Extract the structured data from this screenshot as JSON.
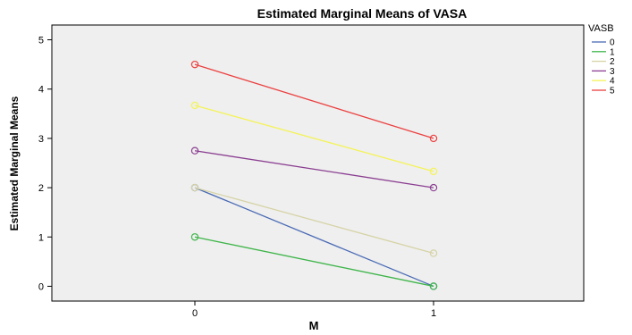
{
  "chart_data": {
    "type": "line",
    "title": "Estimated Marginal Means of VASA",
    "xlabel": "M",
    "ylabel": "Estimated Marginal Means",
    "categories": [
      "0",
      "1"
    ],
    "ylim": [
      -0.3,
      5.3
    ],
    "yticks": [
      0,
      1,
      2,
      3,
      4,
      5
    ],
    "grid": false,
    "legend_title": "VASB",
    "legend_position": "right",
    "series": [
      {
        "name": "0",
        "color": "#4b6bb5",
        "values": [
          2.0,
          0.0
        ]
      },
      {
        "name": "1",
        "color": "#3fb54a",
        "values": [
          1.0,
          0.0
        ]
      },
      {
        "name": "2",
        "color": "#d6d3a6",
        "values": [
          2.0,
          0.67
        ]
      },
      {
        "name": "3",
        "color": "#8b3f91",
        "values": [
          2.75,
          2.0
        ]
      },
      {
        "name": "4",
        "color": "#f4f35a",
        "values": [
          3.67,
          2.33
        ]
      },
      {
        "name": "5",
        "color": "#ec4040",
        "values": [
          4.5,
          3.0
        ]
      }
    ],
    "plot_background": "#efefef"
  }
}
